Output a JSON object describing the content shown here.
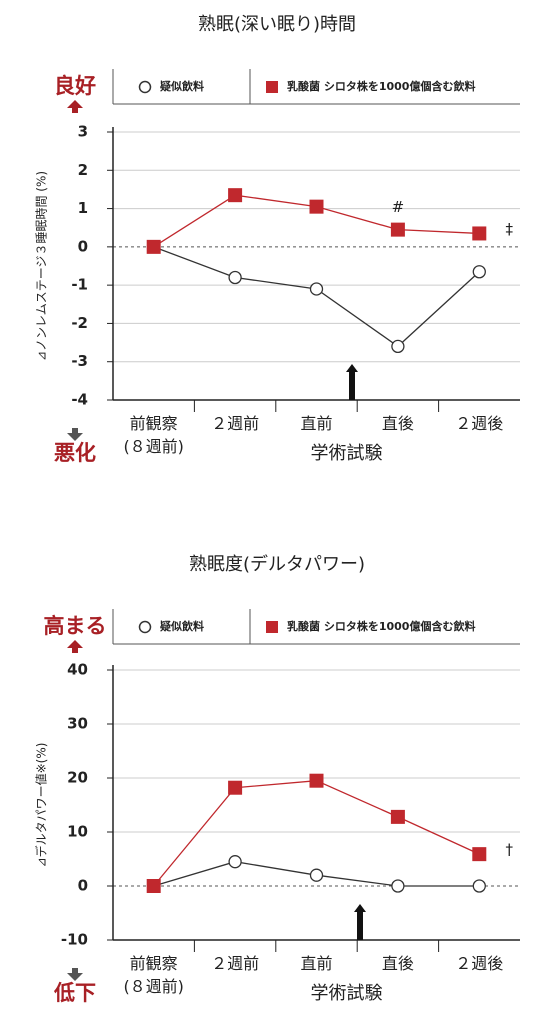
{
  "chart_data": [
    {
      "type": "line",
      "title": "熟眠(深い眠り)時間",
      "y_label": "⊿ノンレムステージ３睡眠時間 (%)",
      "x_label": "学術試験",
      "top_label": "良好",
      "bottom_label": "悪化",
      "categories": [
        "前観察\n(８週前)",
        "２週前",
        "直前",
        "直後",
        "２週後"
      ],
      "series": [
        {
          "name": "疑似飲料",
          "color": "#333333",
          "values": [
            0,
            -0.8,
            -1.1,
            -2.6,
            -0.65
          ]
        },
        {
          "name": "乳酸菌 シロタ株を1000億個含む飲料",
          "color": "#c0282d",
          "values": [
            0,
            1.35,
            1.05,
            0.45,
            0.35
          ]
        }
      ],
      "annotations": [
        "#",
        "‡"
      ],
      "ylim": [
        -4,
        3
      ],
      "yticks": [
        -4,
        -3,
        -2,
        -1,
        0,
        1,
        2,
        3
      ],
      "grid": true
    },
    {
      "type": "line",
      "title": "熟眠度(デルタパワー)",
      "y_label": "⊿デルタパワー値※(%)",
      "x_label": "学術試験",
      "top_label": "高まる",
      "bottom_label": "低下",
      "categories": [
        "前観察\n(８週前)",
        "２週前",
        "直前",
        "直後",
        "２週後"
      ],
      "series": [
        {
          "name": "疑似飲料",
          "color": "#333333",
          "values": [
            0,
            4.5,
            2,
            0,
            0
          ]
        },
        {
          "name": "乳酸菌 シロタ株を1000億個含む飲料",
          "color": "#c0282d",
          "values": [
            0,
            18.2,
            19.5,
            12.8,
            5.9
          ]
        }
      ],
      "annotations": [
        "†"
      ],
      "ylim": [
        -10,
        40
      ],
      "yticks": [
        -10,
        0,
        10,
        20,
        30,
        40
      ],
      "grid": true
    }
  ]
}
